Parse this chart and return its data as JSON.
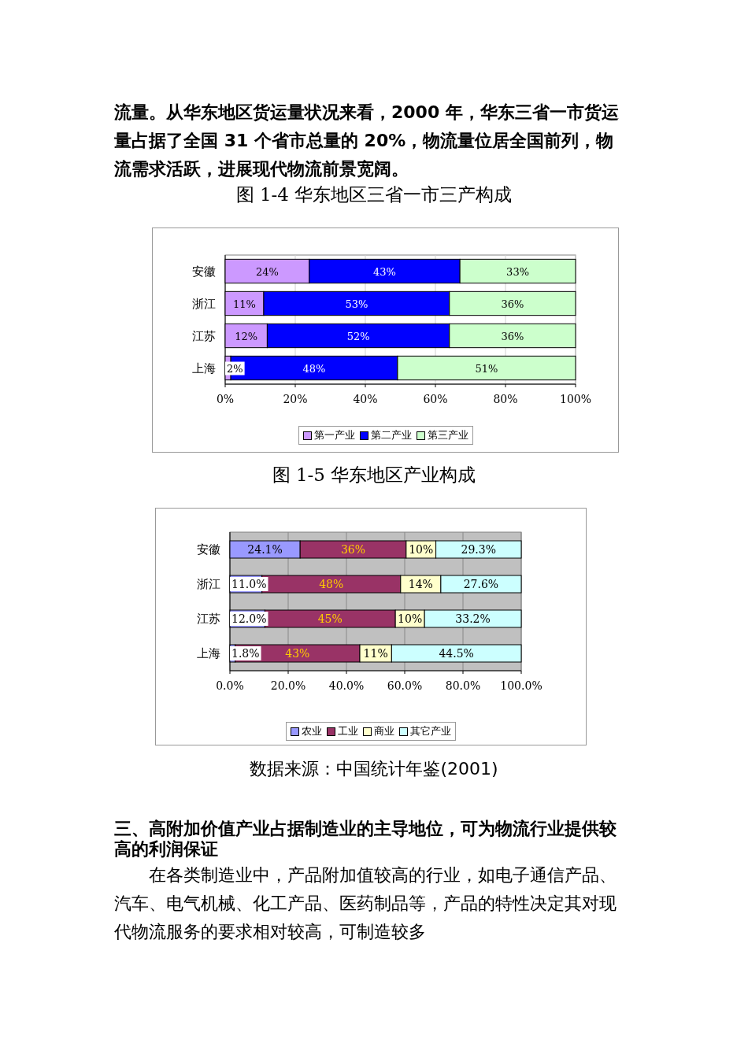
{
  "chart_data": [
    {
      "type": "bar",
      "title": "图 1-4 华东地区三省一市三产构成",
      "annotations": [
        "流量。从华东地区货运量状况来看，2000 年，华东三省一市货运量占据了全国 31 个省市总量的 20%，物流量位居全国前列，物流需求活跃，进展现代物流前景宽阔。"
      ],
      "orientation": "horizontal",
      "stacked": true,
      "categories": [
        "安徽",
        "浙江",
        "江苏",
        "上海"
      ],
      "xlim": [
        0,
        100
      ],
      "xticks": [
        {
          "value": 0,
          "label": "0%"
        },
        {
          "value": 20,
          "label": "20%"
        },
        {
          "value": 40,
          "label": "40%"
        },
        {
          "value": 60,
          "label": "60%"
        },
        {
          "value": 80,
          "label": "80%"
        },
        {
          "value": 100,
          "label": "100%"
        }
      ],
      "grid": "x",
      "legend": "bottom",
      "series": [
        {
          "name": "第一产业",
          "color": "#cc99ff",
          "values": [
            24,
            11,
            12,
            1.6
          ],
          "value_labels": [
            "24%",
            "11%",
            "12%",
            "2%"
          ]
        },
        {
          "name": "第二产业",
          "color": "#0000ff",
          "values": [
            43,
            53,
            52,
            47.6
          ],
          "value_labels": [
            "43%",
            "53%",
            "52%",
            "48%"
          ]
        },
        {
          "name": "第三产业",
          "color": "#ccffcc",
          "values": [
            33,
            36,
            36,
            50.8
          ],
          "value_labels": [
            "33%",
            "36%",
            "36%",
            "51%"
          ]
        }
      ]
    },
    {
      "type": "bar",
      "title": "图 1-5 华东地区产业构成",
      "annotations": [
        "数据来源：中国统计年鉴(2001)",
        "三、高附加价值产业占据制造业的主导地位，可为物流行业提供较高的利润保证",
        "在各类制造业中，产品附加值较高的行业，如电子通信产品、汽车、电气机械、化工产品、医药制品等，产品的特性决定其对现代物流服务的要求相对较高，可制造较多"
      ],
      "orientation": "horizontal",
      "stacked": true,
      "categories": [
        "安徽",
        "浙江",
        "江苏",
        "上海"
      ],
      "xlim": [
        0,
        100
      ],
      "xticks": [
        {
          "value": 0,
          "label": "0.0%"
        },
        {
          "value": 20,
          "label": "20.0%"
        },
        {
          "value": 40,
          "label": "40.0%"
        },
        {
          "value": 60,
          "label": "60.0%"
        },
        {
          "value": 80,
          "label": "80.0%"
        },
        {
          "value": 100,
          "label": "100.0%"
        }
      ],
      "grid": "x",
      "legend": "bottom",
      "series": [
        {
          "name": "农业",
          "color": "#9999ff",
          "values": [
            24.1,
            11.0,
            12.0,
            1.8
          ],
          "value_labels": [
            "24.1%",
            "11.0%",
            "12.0%",
            "1.8%"
          ]
        },
        {
          "name": "工业",
          "color": "#993366",
          "values": [
            36.4,
            47.6,
            44.8,
            42.8
          ],
          "value_labels": [
            "36%",
            "48%",
            "45%",
            "43%"
          ]
        },
        {
          "name": "商业",
          "color": "#ffffcc",
          "values": [
            10.2,
            13.8,
            10.0,
            10.9
          ],
          "value_labels": [
            "10%",
            "14%",
            "10%",
            "11%"
          ]
        },
        {
          "name": "其它产业",
          "color": "#ccffff",
          "values": [
            29.3,
            27.6,
            33.2,
            44.5
          ],
          "value_labels": [
            "29.3%",
            "27.6%",
            "33.2%",
            "44.5%"
          ]
        }
      ]
    }
  ]
}
